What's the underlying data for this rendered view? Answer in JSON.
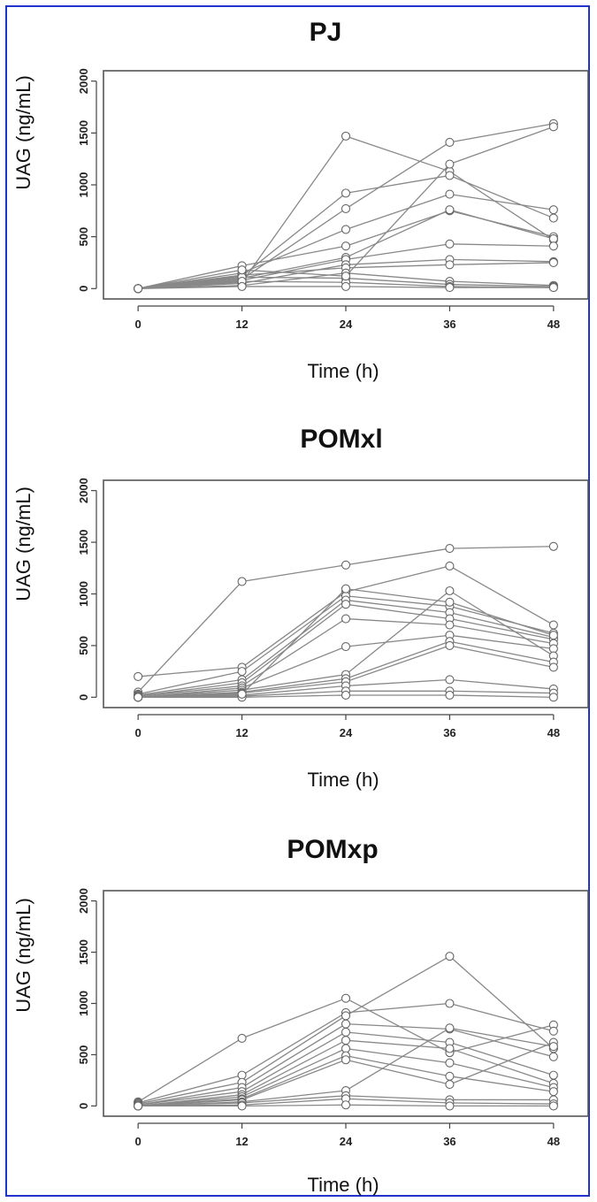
{
  "chart_data": [
    {
      "type": "line",
      "title": "PJ",
      "xlabel": "Time (h)",
      "ylabel": "UAG (ng/mL)",
      "x": [
        0,
        12,
        24,
        36,
        48
      ],
      "xticks": [
        "0",
        "12",
        "24",
        "36",
        "48"
      ],
      "yticks": [
        "0",
        "500",
        "1000",
        "1500",
        "2000"
      ],
      "xlim": [
        -4,
        52
      ],
      "ylim": [
        -100,
        2100
      ],
      "grid": false,
      "series": [
        {
          "values": [
            0,
            60,
            1470,
            1130,
            470
          ]
        },
        {
          "values": [
            0,
            120,
            920,
            1090,
            680
          ]
        },
        {
          "values": [
            0,
            90,
            770,
            1410,
            1590
          ]
        },
        {
          "values": [
            0,
            150,
            570,
            910,
            760
          ]
        },
        {
          "values": [
            0,
            220,
            410,
            750,
            500
          ]
        },
        {
          "values": [
            0,
            100,
            300,
            760,
            480
          ]
        },
        {
          "values": [
            0,
            80,
            280,
            430,
            410
          ]
        },
        {
          "values": [
            0,
            50,
            230,
            280,
            260
          ]
        },
        {
          "values": [
            0,
            130,
            200,
            230,
            250
          ]
        },
        {
          "values": [
            0,
            30,
            150,
            70,
            30
          ]
        },
        {
          "values": [
            0,
            110,
            100,
            40,
            20
          ]
        },
        {
          "values": [
            0,
            70,
            60,
            20,
            10
          ]
        },
        {
          "values": [
            0,
            20,
            20,
            10,
            10
          ]
        },
        {
          "values": [
            0,
            180,
            120,
            1200,
            1560
          ]
        }
      ]
    },
    {
      "type": "line",
      "title": "POMxl",
      "xlabel": "Time (h)",
      "ylabel": "UAG (ng/mL)",
      "x": [
        0,
        12,
        24,
        36,
        48
      ],
      "xticks": [
        "0",
        "12",
        "24",
        "36",
        "48"
      ],
      "yticks": [
        "0",
        "500",
        "1000",
        "1500",
        "2000"
      ],
      "xlim": [
        -4,
        52
      ],
      "ylim": [
        -100,
        2100
      ],
      "grid": false,
      "series": [
        {
          "values": [
            50,
            1120,
            1280,
            1440,
            1460
          ]
        },
        {
          "values": [
            200,
            290,
            1020,
            1270,
            700
          ]
        },
        {
          "values": [
            30,
            250,
            980,
            880,
            620
          ]
        },
        {
          "values": [
            20,
            170,
            940,
            820,
            580
          ]
        },
        {
          "values": [
            10,
            140,
            900,
            760,
            560
          ]
        },
        {
          "values": [
            10,
            110,
            760,
            700,
            520
          ]
        },
        {
          "values": [
            0,
            90,
            490,
            600,
            470
          ]
        },
        {
          "values": [
            0,
            70,
            220,
            1030,
            400
          ]
        },
        {
          "values": [
            0,
            50,
            180,
            540,
            340
          ]
        },
        {
          "values": [
            0,
            40,
            150,
            500,
            290
          ]
        },
        {
          "values": [
            0,
            20,
            110,
            170,
            80
          ]
        },
        {
          "values": [
            0,
            10,
            60,
            60,
            40
          ]
        },
        {
          "values": [
            0,
            0,
            20,
            20,
            0
          ]
        },
        {
          "values": [
            0,
            30,
            1050,
            920,
            600
          ]
        }
      ]
    },
    {
      "type": "line",
      "title": "POMxp",
      "xlabel": "Time (h)",
      "ylabel": "UAG (ng/mL)",
      "x": [
        0,
        12,
        24,
        36,
        48
      ],
      "xticks": [
        "0",
        "12",
        "24",
        "36",
        "48"
      ],
      "yticks": [
        "0",
        "500",
        "1000",
        "1500",
        "2000"
      ],
      "xlim": [
        -4,
        52
      ],
      "ylim": [
        -100,
        2100
      ],
      "grid": false,
      "series": [
        {
          "values": [
            40,
            660,
            1050,
            520,
            790
          ]
        },
        {
          "values": [
            30,
            300,
            910,
            1000,
            730
          ]
        },
        {
          "values": [
            20,
            230,
            880,
            1460,
            560
          ]
        },
        {
          "values": [
            10,
            180,
            800,
            750,
            480
          ]
        },
        {
          "values": [
            10,
            140,
            720,
            620,
            300
          ]
        },
        {
          "values": [
            0,
            110,
            640,
            560,
            220
          ]
        },
        {
          "values": [
            0,
            90,
            560,
            420,
            180
          ]
        },
        {
          "values": [
            0,
            70,
            490,
            290,
            140
          ]
        },
        {
          "values": [
            0,
            60,
            450,
            210,
            620
          ]
        },
        {
          "values": [
            0,
            40,
            150,
            760,
            580
          ]
        },
        {
          "values": [
            0,
            30,
            100,
            60,
            60
          ]
        },
        {
          "values": [
            0,
            10,
            70,
            30,
            20
          ]
        },
        {
          "values": [
            0,
            0,
            10,
            0,
            0
          ]
        }
      ]
    }
  ]
}
